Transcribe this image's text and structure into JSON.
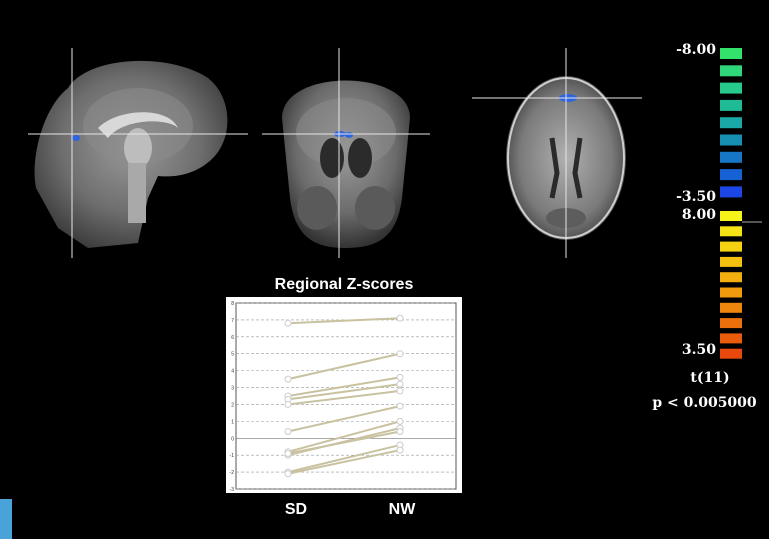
{
  "colors": {
    "background": "#000000",
    "negative_scale": [
      "#33e26a",
      "#2fd77a",
      "#27c98c",
      "#1fbb97",
      "#1aa9a6",
      "#168fb2",
      "#1577c5",
      "#1662d4",
      "#1c46e6"
    ],
    "positive_scale": [
      "#f6f31a",
      "#f5e315",
      "#f5d212",
      "#f4c010",
      "#f2ae0f",
      "#f09a0e",
      "#ee850d",
      "#ec710c",
      "#ea5c0c",
      "#e8480b"
    ],
    "series_line": "#c9c2a0",
    "activation": "#2f64e0"
  },
  "colorbar": {
    "negative_max": "-8.00",
    "negative_min": "-3.50",
    "positive_max": "8.00",
    "positive_min": "3.50",
    "stat": "t(11)",
    "threshold": "p < 0.005000"
  },
  "chart_data": {
    "type": "line",
    "title": "Regional Z-scores",
    "categories": [
      "SD",
      "NW"
    ],
    "ylim": [
      -3,
      8
    ],
    "y_ticks": [
      "-3",
      "-2",
      "-1",
      "0",
      "1",
      "2",
      "3",
      "4",
      "5",
      "6",
      "7",
      "8"
    ],
    "grid": true,
    "series": [
      {
        "values": [
          6.8,
          7.1
        ]
      },
      {
        "values": [
          3.5,
          5.0
        ]
      },
      {
        "values": [
          2.5,
          3.6
        ]
      },
      {
        "values": [
          2.3,
          3.2
        ]
      },
      {
        "values": [
          2.0,
          2.8
        ]
      },
      {
        "values": [
          0.4,
          1.9
        ]
      },
      {
        "values": [
          -0.8,
          1.0
        ]
      },
      {
        "values": [
          -1.0,
          0.6
        ]
      },
      {
        "values": [
          -0.9,
          0.4
        ]
      },
      {
        "values": [
          -2.0,
          -0.4
        ]
      },
      {
        "values": [
          -2.1,
          -0.7
        ]
      }
    ]
  }
}
